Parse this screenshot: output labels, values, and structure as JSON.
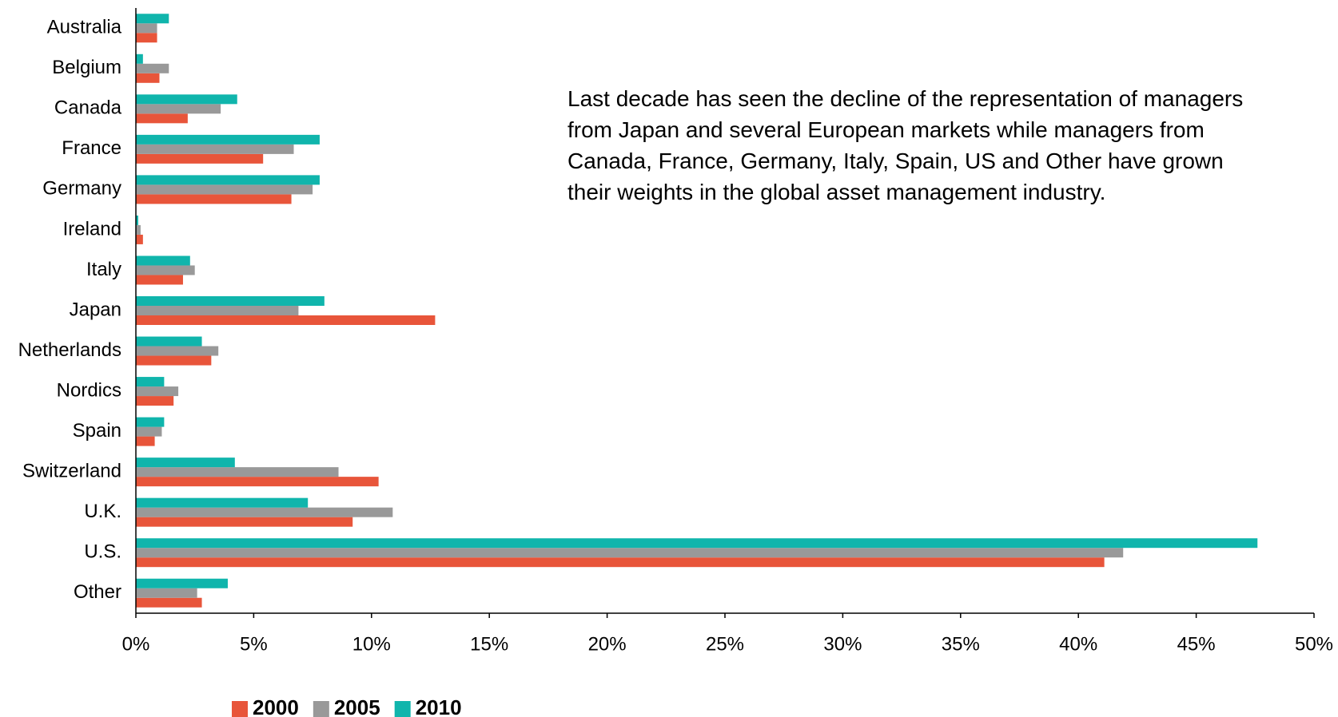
{
  "chart_data": {
    "type": "barh",
    "annotation": "Last decade has seen the decline of the representation of managers from Japan and several European markets while managers from Canada, France, Germany, Italy, Spain, US and Other have grown their weights in the global asset management industry.",
    "categories": [
      "Australia",
      "Belgium",
      "Canada",
      "France",
      "Germany",
      "Ireland",
      "Italy",
      "Japan",
      "Netherlands",
      "Nordics",
      "Spain",
      "Switzerland",
      "U.K.",
      "U.S.",
      "Other"
    ],
    "series": [
      {
        "name": "2000",
        "color": "#e8553a",
        "values": [
          0.9,
          1.0,
          2.2,
          5.4,
          6.6,
          0.3,
          2.0,
          12.7,
          3.2,
          1.6,
          0.8,
          10.3,
          9.2,
          41.1,
          2.8
        ]
      },
      {
        "name": "2005",
        "color": "#999999",
        "values": [
          0.9,
          1.4,
          3.6,
          6.7,
          7.5,
          0.2,
          2.5,
          6.9,
          3.5,
          1.8,
          1.1,
          8.6,
          10.9,
          41.9,
          2.6
        ]
      },
      {
        "name": "2010",
        "color": "#10b5ac",
        "values": [
          1.4,
          0.3,
          4.3,
          7.8,
          7.8,
          0.1,
          2.3,
          8.0,
          2.8,
          1.2,
          1.2,
          4.2,
          7.3,
          47.6,
          3.9
        ]
      }
    ],
    "xlim": [
      0,
      50
    ],
    "xticks": [
      {
        "value": 0,
        "label": "0%"
      },
      {
        "value": 5,
        "label": "5%"
      },
      {
        "value": 10,
        "label": "10%"
      },
      {
        "value": 15,
        "label": "15%"
      },
      {
        "value": 20,
        "label": "20%"
      },
      {
        "value": 25,
        "label": "25%"
      },
      {
        "value": 30,
        "label": "30%"
      },
      {
        "value": 35,
        "label": "35%"
      },
      {
        "value": 40,
        "label": "40%"
      },
      {
        "value": 45,
        "label": "45%"
      },
      {
        "value": 50,
        "label": "50%"
      }
    ],
    "legend": "bottom-left"
  }
}
